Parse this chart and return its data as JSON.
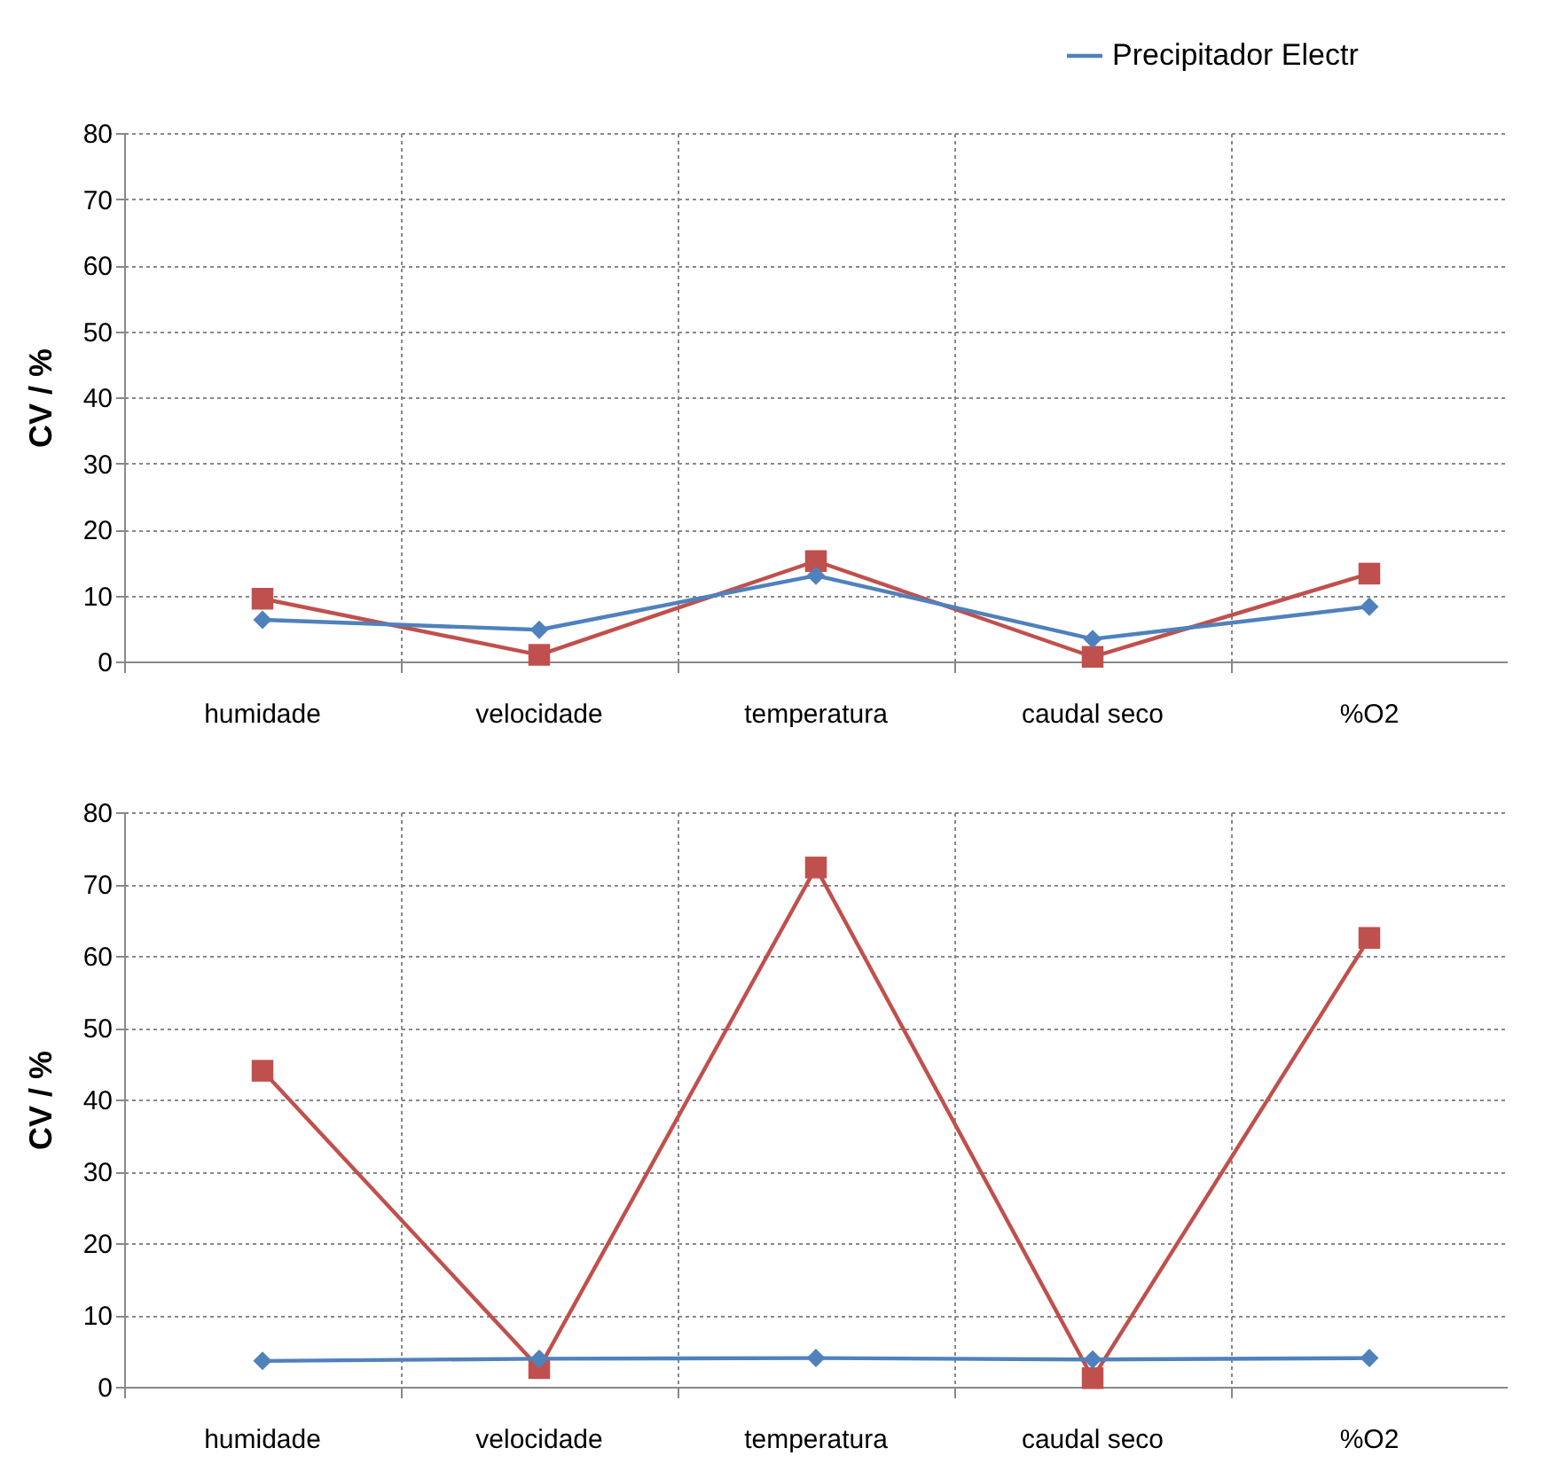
{
  "chart_data": [
    {
      "type": "line",
      "categories": [
        "humidade",
        "velocidade",
        "temperatura",
        "caudal seco",
        "%O2"
      ],
      "ylabel": "CV / %",
      "ylim": [
        0,
        80
      ],
      "yticks": [
        0,
        10,
        20,
        30,
        40,
        50,
        60,
        70,
        80
      ],
      "grid": true,
      "legend": "top right",
      "series": [
        {
          "name": "Precipitador Electr",
          "color": "#4f81bd",
          "marker": "diamond",
          "values": [
            6.3,
            4.8,
            13,
            3.4,
            8.3
          ]
        },
        {
          "color": "#c0504d",
          "marker": "square",
          "values": [
            9.5,
            1,
            15.2,
            0.7,
            13.3
          ]
        }
      ]
    },
    {
      "type": "line",
      "categories": [
        "humidade",
        "velocidade",
        "temperatura",
        "caudal seco",
        "%O2"
      ],
      "ylabel": "CV / %",
      "ylim": [
        0,
        80
      ],
      "yticks": [
        0,
        10,
        20,
        30,
        40,
        50,
        60,
        70,
        80
      ],
      "grid": true,
      "series": [
        {
          "color": "#4f81bd",
          "marker": "diamond",
          "values": [
            3.6,
            3.9,
            4,
            3.8,
            4
          ]
        },
        {
          "color": "#c0504d",
          "marker": "square",
          "values": [
            44,
            2.6,
            72.3,
            1.2,
            62.5
          ]
        }
      ]
    }
  ]
}
